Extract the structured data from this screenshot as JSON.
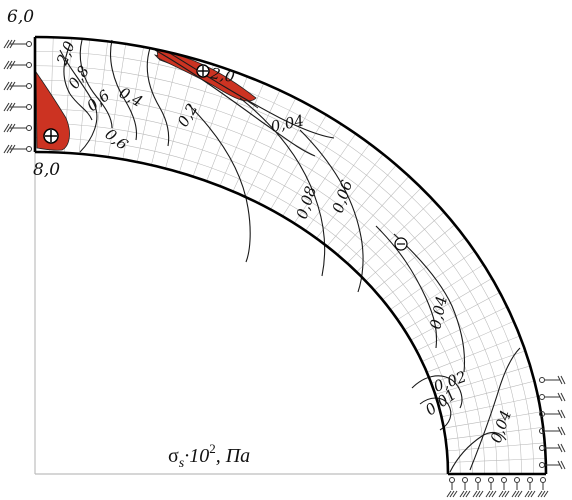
{
  "corners": {
    "top_left": "6,0",
    "inner_left": "8,0"
  },
  "isolines": [
    {
      "id": "2-0",
      "text": "2,0"
    },
    {
      "id": "0-8",
      "text": "0,8"
    },
    {
      "id": "0-6-a",
      "text": "0,6"
    },
    {
      "id": "0-4-a",
      "text": "0,4"
    },
    {
      "id": "0-6-b",
      "text": "0,6"
    },
    {
      "id": "0-2",
      "text": "0,2"
    },
    {
      "id": "2-0-b",
      "text": "2,0"
    },
    {
      "id": "0-04-top",
      "text": "0,04"
    },
    {
      "id": "0-08",
      "text": "0,08"
    },
    {
      "id": "0-06",
      "text": "0,06"
    },
    {
      "id": "0-04-mid",
      "text": "0,04"
    },
    {
      "id": "0-02",
      "text": "0,02"
    },
    {
      "id": "0-01",
      "text": "0,01"
    },
    {
      "id": "0-04-bot",
      "text": "0,04"
    }
  ],
  "caption": {
    "symbol": "σ",
    "subscript": "s",
    "multiplier": "·10",
    "exponent": "2",
    "unit": ", Па"
  },
  "colors": {
    "high_stress_zone": "#cc3322",
    "mesh": "#b9b9b9",
    "contour": "#1a1a1a"
  },
  "signs": {
    "positive": "plus-in-circle",
    "negative": "minus-in-circle"
  }
}
